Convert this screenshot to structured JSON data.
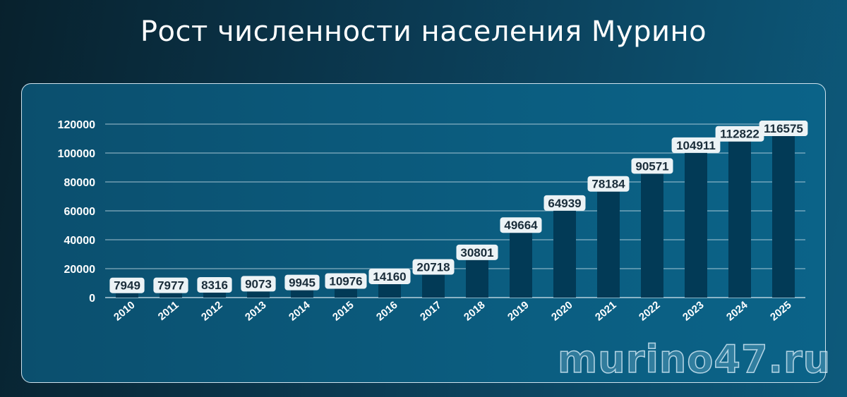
{
  "title": "Рост численности населения Мурино",
  "watermark": "murino47.ru",
  "colors": {
    "bar": "#023a56",
    "label_bg": "#ecf3f6",
    "grid": "#d8e8f0",
    "text": "#ffffff"
  },
  "chart_data": {
    "type": "bar",
    "title": "Рост численности населения Мурино",
    "xlabel": "",
    "ylabel": "",
    "categories": [
      "2010",
      "2011",
      "2012",
      "2013",
      "2014",
      "2015",
      "2016",
      "2017",
      "2018",
      "2019",
      "2020",
      "2021",
      "2022",
      "2023",
      "2024",
      "2025"
    ],
    "values": [
      7949,
      7977,
      8316,
      9073,
      9945,
      10976,
      14160,
      20718,
      30801,
      49664,
      64939,
      78184,
      90571,
      104911,
      112822,
      116575
    ],
    "ylim": [
      0,
      120000
    ],
    "yticks": [
      0,
      20000,
      40000,
      60000,
      80000,
      100000,
      120000
    ],
    "grid": true,
    "legend": "none"
  }
}
